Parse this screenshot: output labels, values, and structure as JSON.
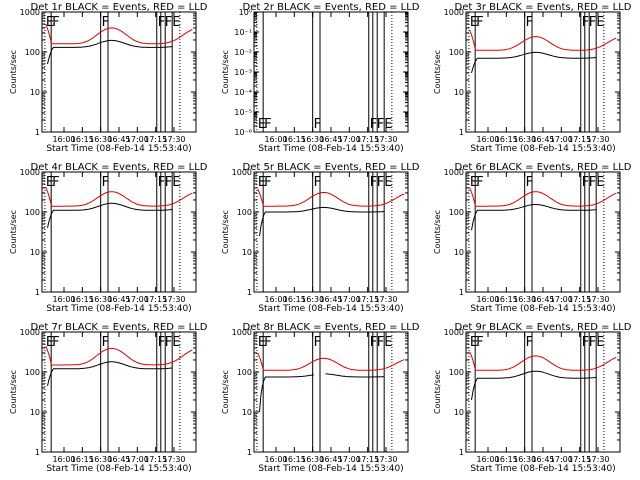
{
  "chart_data": {
    "type": "line",
    "grid": "3x3",
    "x_ticks": [
      "16:00",
      "16:15",
      "16:30",
      "16:45",
      "17:00",
      "17:15",
      "17:30"
    ],
    "x_range_minutes_after_16_00": [
      -6,
      36
    ],
    "y_scale": "log",
    "ylabel": "Counts/sec",
    "xlabel": "Start Time (08-Feb-14 15:53:40)",
    "series_legend": {
      "black": "Events",
      "red": "LLD"
    },
    "colors": {
      "events": "#000000",
      "lld": "#e00000"
    },
    "flags": [
      {
        "label": "E",
        "at_min": -5.2
      },
      {
        "label": "F",
        "at_min": -3.5
      },
      {
        "label": "F",
        "at_min": 10.0
      },
      {
        "label": "F",
        "at_min": 25.3
      },
      {
        "label": "FE",
        "at_min": 27.2
      }
    ],
    "solid_lines_min": [
      -3.5,
      10.0,
      12.0,
      25.3,
      26.4,
      27.6,
      29.5
    ],
    "dotted_lines_min": [
      -5.2,
      31.6
    ],
    "panels": [
      {
        "title": "Det 1r BLACK = Events, RED = LLD",
        "y_ticks": [
          "1",
          "10",
          "100",
          "1000"
        ],
        "y_range_log10": [
          0,
          3
        ],
        "red_base": 160,
        "red_amp": 2.5,
        "red_start": 500,
        "black_base": 130,
        "black_amp": 1.5,
        "black_start": 50,
        "gap_min": null
      },
      {
        "title": "Det 2r BLACK = Events, RED = LLD",
        "y_ticks": [
          "10⁻⁶",
          "10⁻⁵",
          "10⁻⁴",
          "10⁻³",
          "10⁻²",
          "10⁻¹",
          "10⁰"
        ],
        "y_range_log10": [
          -6,
          0
        ],
        "red_base": null,
        "black_base": null,
        "gap_min": null
      },
      {
        "title": "Det 3r BLACK = Events, RED = LLD",
        "y_ticks": [
          "1",
          "10",
          "100",
          "1000"
        ],
        "y_range_log10": [
          0,
          3
        ],
        "red_base": 110,
        "red_amp": 2.2,
        "red_start": 350,
        "black_base": 70,
        "black_amp": 1.4,
        "black_start": 30,
        "gap_min": null
      },
      {
        "title": "Det 4r BLACK = Events, RED = LLD",
        "y_ticks": [
          "1",
          "10",
          "100",
          "1000"
        ],
        "y_range_log10": [
          0,
          3
        ],
        "red_base": 140,
        "red_amp": 2.3,
        "red_start": 420,
        "black_base": 110,
        "black_amp": 1.5,
        "black_start": 40,
        "gap_min": null
      },
      {
        "title": "Det 5r BLACK = Events, RED = LLD",
        "y_ticks": [
          "1",
          "10",
          "100",
          "1000"
        ],
        "y_range_log10": [
          0,
          3
        ],
        "red_base": 140,
        "red_amp": 2.2,
        "red_start": 380,
        "black_base": 100,
        "black_amp": 1.3,
        "black_start": 25,
        "gap_min": null
      },
      {
        "title": "Det 6r BLACK = Events, RED = LLD",
        "y_ticks": [
          "1",
          "10",
          "100",
          "1000"
        ],
        "y_range_log10": [
          0,
          3
        ],
        "red_base": 140,
        "red_amp": 2.3,
        "red_start": 400,
        "black_base": 110,
        "black_amp": 1.4,
        "black_start": 35,
        "gap_min": null
      },
      {
        "title": "Det 7r BLACK = Events, RED = LLD",
        "y_ticks": [
          "1",
          "10",
          "100",
          "1000"
        ],
        "y_range_log10": [
          0,
          3
        ],
        "red_base": 150,
        "red_amp": 2.6,
        "red_start": 450,
        "black_base": 120,
        "black_amp": 1.5,
        "black_start": 45,
        "gap_min": null
      },
      {
        "title": "Det 8r BLACK = Events, RED = LLD",
        "y_ticks": [
          "1",
          "10",
          "100",
          "1000"
        ],
        "y_range_log10": [
          0,
          3
        ],
        "red_base": 110,
        "red_amp": 2.0,
        "red_start": 300,
        "black_base": 75,
        "black_amp": 1.2,
        "black_start": 10,
        "gap_min": [
          10.5,
          13.5
        ]
      },
      {
        "title": "Det 9r BLACK = Events, RED = LLD",
        "y_ticks": [
          "1",
          "10",
          "100",
          "1000"
        ],
        "y_range_log10": [
          0,
          3
        ],
        "red_base": 110,
        "red_amp": 2.3,
        "red_start": 320,
        "black_base": 70,
        "black_amp": 1.5,
        "black_start": 20,
        "gap_min": null
      }
    ]
  }
}
